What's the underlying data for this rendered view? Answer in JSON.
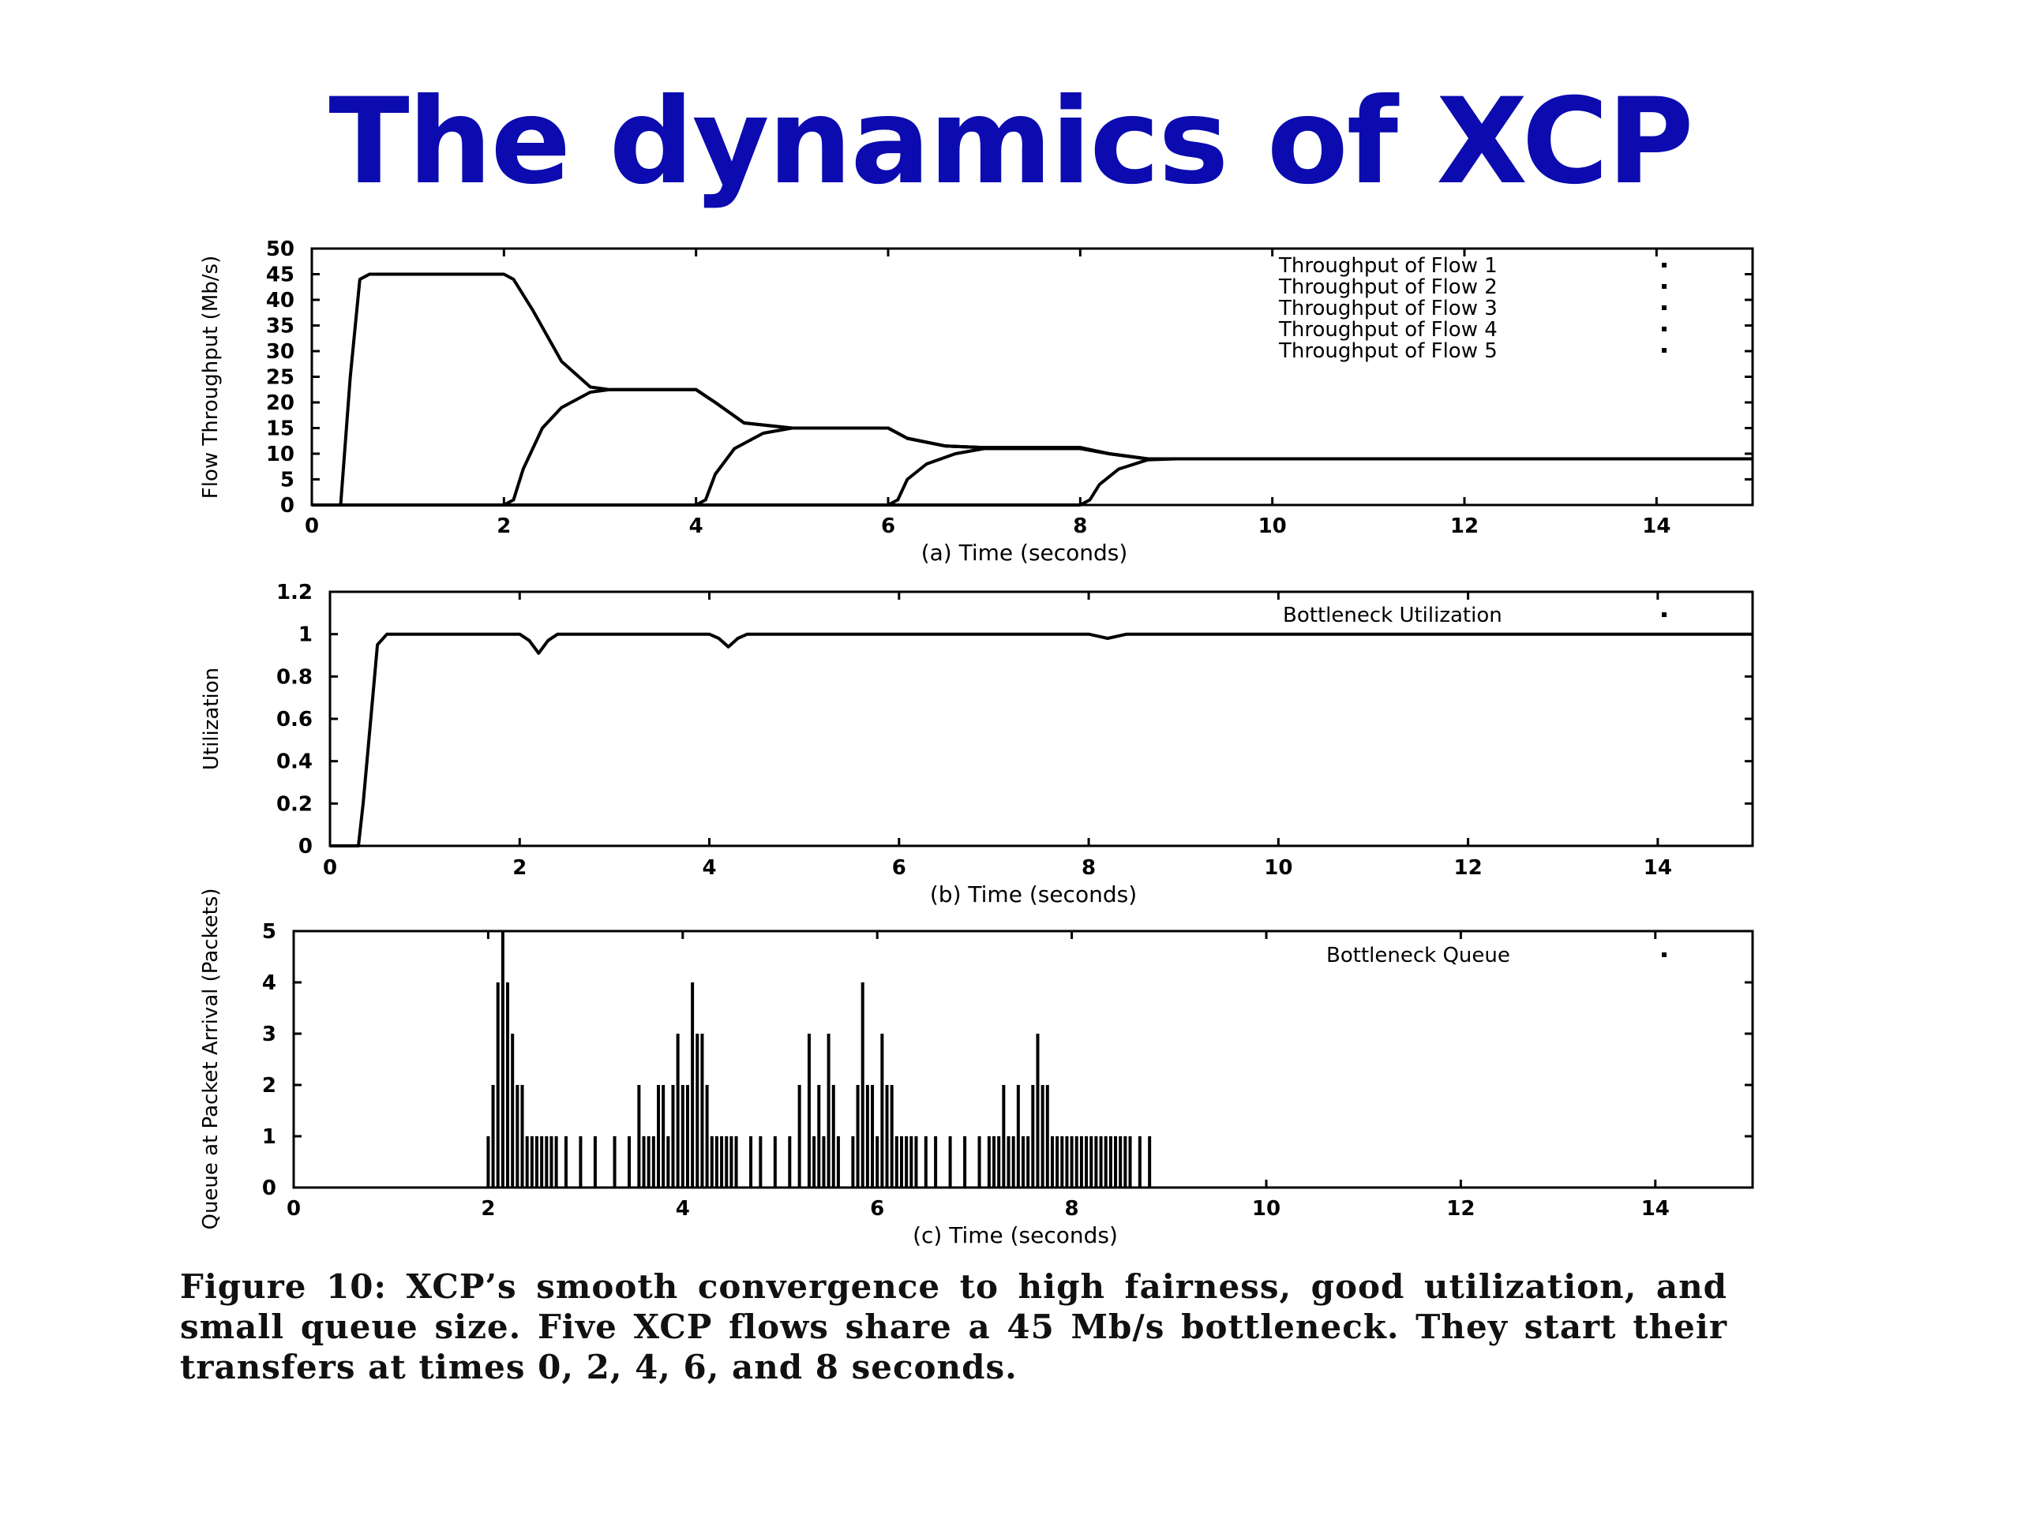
{
  "slide": {
    "title": "The dynamics of XCP",
    "caption": "Figure 10:  XCP’s smooth convergence to high fairness, good utilization, and small queue size.  Five XCP flows share a 45 Mb/s bottleneck.  They start their transfers at times 0, 2, 4, 6, and 8 seconds."
  },
  "chart_data": [
    {
      "type": "line",
      "xlabel": "(a) Time (seconds)",
      "ylabel": "Flow Throughput (Mb/s)",
      "xlim": [
        0,
        15
      ],
      "ylim": [
        0,
        50
      ],
      "xticks": [
        0,
        2,
        4,
        6,
        8,
        10,
        12,
        14
      ],
      "yticks": [
        0,
        5,
        10,
        15,
        20,
        25,
        30,
        35,
        40,
        45,
        50
      ],
      "legend_position": "top-right",
      "series": [
        {
          "name": "Throughput of Flow 1",
          "x": [
            0,
            0.3,
            0.4,
            0.5,
            0.6,
            2.0,
            2.1,
            2.3,
            2.6,
            2.9,
            3.1,
            4.0,
            4.2,
            4.5,
            5.0,
            6.0,
            6.2,
            6.6,
            7.0,
            8.0,
            8.3,
            8.7,
            9.0,
            15.0
          ],
          "y": [
            0,
            0,
            25,
            44,
            45,
            45,
            44,
            38,
            28,
            23,
            22.5,
            22.5,
            20,
            16,
            15,
            15,
            13,
            11.5,
            11.2,
            11.2,
            10,
            9,
            9,
            9
          ]
        },
        {
          "name": "Throughput of Flow 2",
          "x": [
            0,
            2.0,
            2.1,
            2.2,
            2.4,
            2.6,
            2.9,
            3.1,
            4.0,
            4.2,
            4.5,
            5.0,
            6.0,
            6.2,
            6.6,
            7.0,
            8.0,
            8.3,
            8.7,
            9.0,
            15.0
          ],
          "y": [
            0,
            0,
            1,
            7,
            15,
            19,
            22,
            22.5,
            22.5,
            20,
            16,
            15,
            15,
            13,
            11.5,
            11.2,
            11.2,
            10,
            9,
            9,
            9
          ]
        },
        {
          "name": "Throughput of Flow 3",
          "x": [
            0,
            4.0,
            4.1,
            4.2,
            4.4,
            4.7,
            5.0,
            6.0,
            6.2,
            6.6,
            7.0,
            8.0,
            8.3,
            8.7,
            9.0,
            15.0
          ],
          "y": [
            0,
            0,
            1,
            6,
            11,
            14,
            15,
            15,
            13,
            11.5,
            11.2,
            11.2,
            10,
            9,
            9,
            9
          ]
        },
        {
          "name": "Throughput of Flow 4",
          "x": [
            0,
            6.0,
            6.1,
            6.2,
            6.4,
            6.7,
            7.0,
            8.0,
            8.3,
            8.7,
            9.0,
            15.0
          ],
          "y": [
            0,
            0,
            1,
            5,
            8,
            10,
            11,
            11,
            10,
            9,
            9,
            9
          ]
        },
        {
          "name": "Throughput of Flow 5",
          "x": [
            0,
            8.0,
            8.1,
            8.2,
            8.4,
            8.7,
            9.0,
            15.0
          ],
          "y": [
            0,
            0,
            1,
            4,
            7,
            8.8,
            9,
            9
          ]
        }
      ]
    },
    {
      "type": "line",
      "xlabel": "(b) Time (seconds)",
      "ylabel": "Utilization",
      "xlim": [
        0,
        15
      ],
      "ylim": [
        0,
        1.2
      ],
      "xticks": [
        0,
        2,
        4,
        6,
        8,
        10,
        12,
        14
      ],
      "yticks": [
        0,
        0.2,
        0.4,
        0.6,
        0.8,
        1,
        1.2
      ],
      "legend_position": "top-right",
      "series": [
        {
          "name": "Bottleneck Utilization",
          "x": [
            0,
            0.3,
            0.35,
            0.45,
            0.5,
            0.6,
            2.0,
            2.1,
            2.2,
            2.3,
            2.4,
            4.0,
            4.1,
            4.2,
            4.3,
            4.4,
            8.0,
            8.2,
            8.4,
            15.0
          ],
          "y": [
            0,
            0,
            0.2,
            0.7,
            0.95,
            1.0,
            1.0,
            0.97,
            0.91,
            0.97,
            1.0,
            1.0,
            0.98,
            0.94,
            0.98,
            1.0,
            1.0,
            0.98,
            1.0,
            1.0
          ]
        }
      ]
    },
    {
      "type": "bar",
      "xlabel": "(c) Time (seconds)",
      "ylabel": "Queue at Packet Arrival (Packets)",
      "xlim": [
        0,
        15
      ],
      "ylim": [
        0,
        5
      ],
      "xticks": [
        0,
        2,
        4,
        6,
        8,
        10,
        12,
        14
      ],
      "yticks": [
        0,
        1,
        2,
        3,
        4,
        5
      ],
      "legend_position": "top-right",
      "series": [
        {
          "name": "Bottleneck Queue",
          "x": [
            2.0,
            2.05,
            2.1,
            2.15,
            2.2,
            2.25,
            2.3,
            2.35,
            2.4,
            2.45,
            2.5,
            2.55,
            2.6,
            2.65,
            2.7,
            2.8,
            2.95,
            3.1,
            3.3,
            3.45,
            3.55,
            3.6,
            3.65,
            3.7,
            3.75,
            3.8,
            3.85,
            3.9,
            3.95,
            4.0,
            4.05,
            4.1,
            4.15,
            4.2,
            4.25,
            4.3,
            4.35,
            4.4,
            4.45,
            4.5,
            4.55,
            4.7,
            4.8,
            4.95,
            5.1,
            5.2,
            5.3,
            5.35,
            5.4,
            5.45,
            5.5,
            5.55,
            5.6,
            5.75,
            5.8,
            5.85,
            5.9,
            5.95,
            6.0,
            6.05,
            6.1,
            6.15,
            6.2,
            6.25,
            6.3,
            6.35,
            6.4,
            6.5,
            6.6,
            6.75,
            6.9,
            7.05,
            7.15,
            7.2,
            7.25,
            7.3,
            7.35,
            7.4,
            7.45,
            7.5,
            7.55,
            7.6,
            7.65,
            7.7,
            7.75,
            7.8,
            7.85,
            7.9,
            7.95,
            8.0,
            8.05,
            8.1,
            8.15,
            8.2,
            8.25,
            8.3,
            8.35,
            8.4,
            8.45,
            8.5,
            8.55,
            8.6,
            8.7,
            8.8
          ],
          "y": [
            1,
            2,
            4,
            5,
            4,
            3,
            2,
            2,
            1,
            1,
            1,
            1,
            1,
            1,
            1,
            1,
            1,
            1,
            1,
            1,
            2,
            1,
            1,
            1,
            2,
            2,
            1,
            2,
            3,
            2,
            2,
            4,
            3,
            3,
            2,
            1,
            1,
            1,
            1,
            1,
            1,
            1,
            1,
            1,
            1,
            2,
            3,
            1,
            2,
            1,
            3,
            2,
            1,
            1,
            2,
            4,
            2,
            2,
            1,
            3,
            2,
            2,
            1,
            1,
            1,
            1,
            1,
            1,
            1,
            1,
            1,
            1,
            1,
            1,
            1,
            2,
            1,
            1,
            2,
            1,
            1,
            2,
            3,
            2,
            2,
            1,
            1,
            1,
            1,
            1,
            1,
            1,
            1,
            1,
            1,
            1,
            1,
            1,
            1,
            1,
            1,
            1,
            1,
            1
          ]
        }
      ]
    }
  ]
}
